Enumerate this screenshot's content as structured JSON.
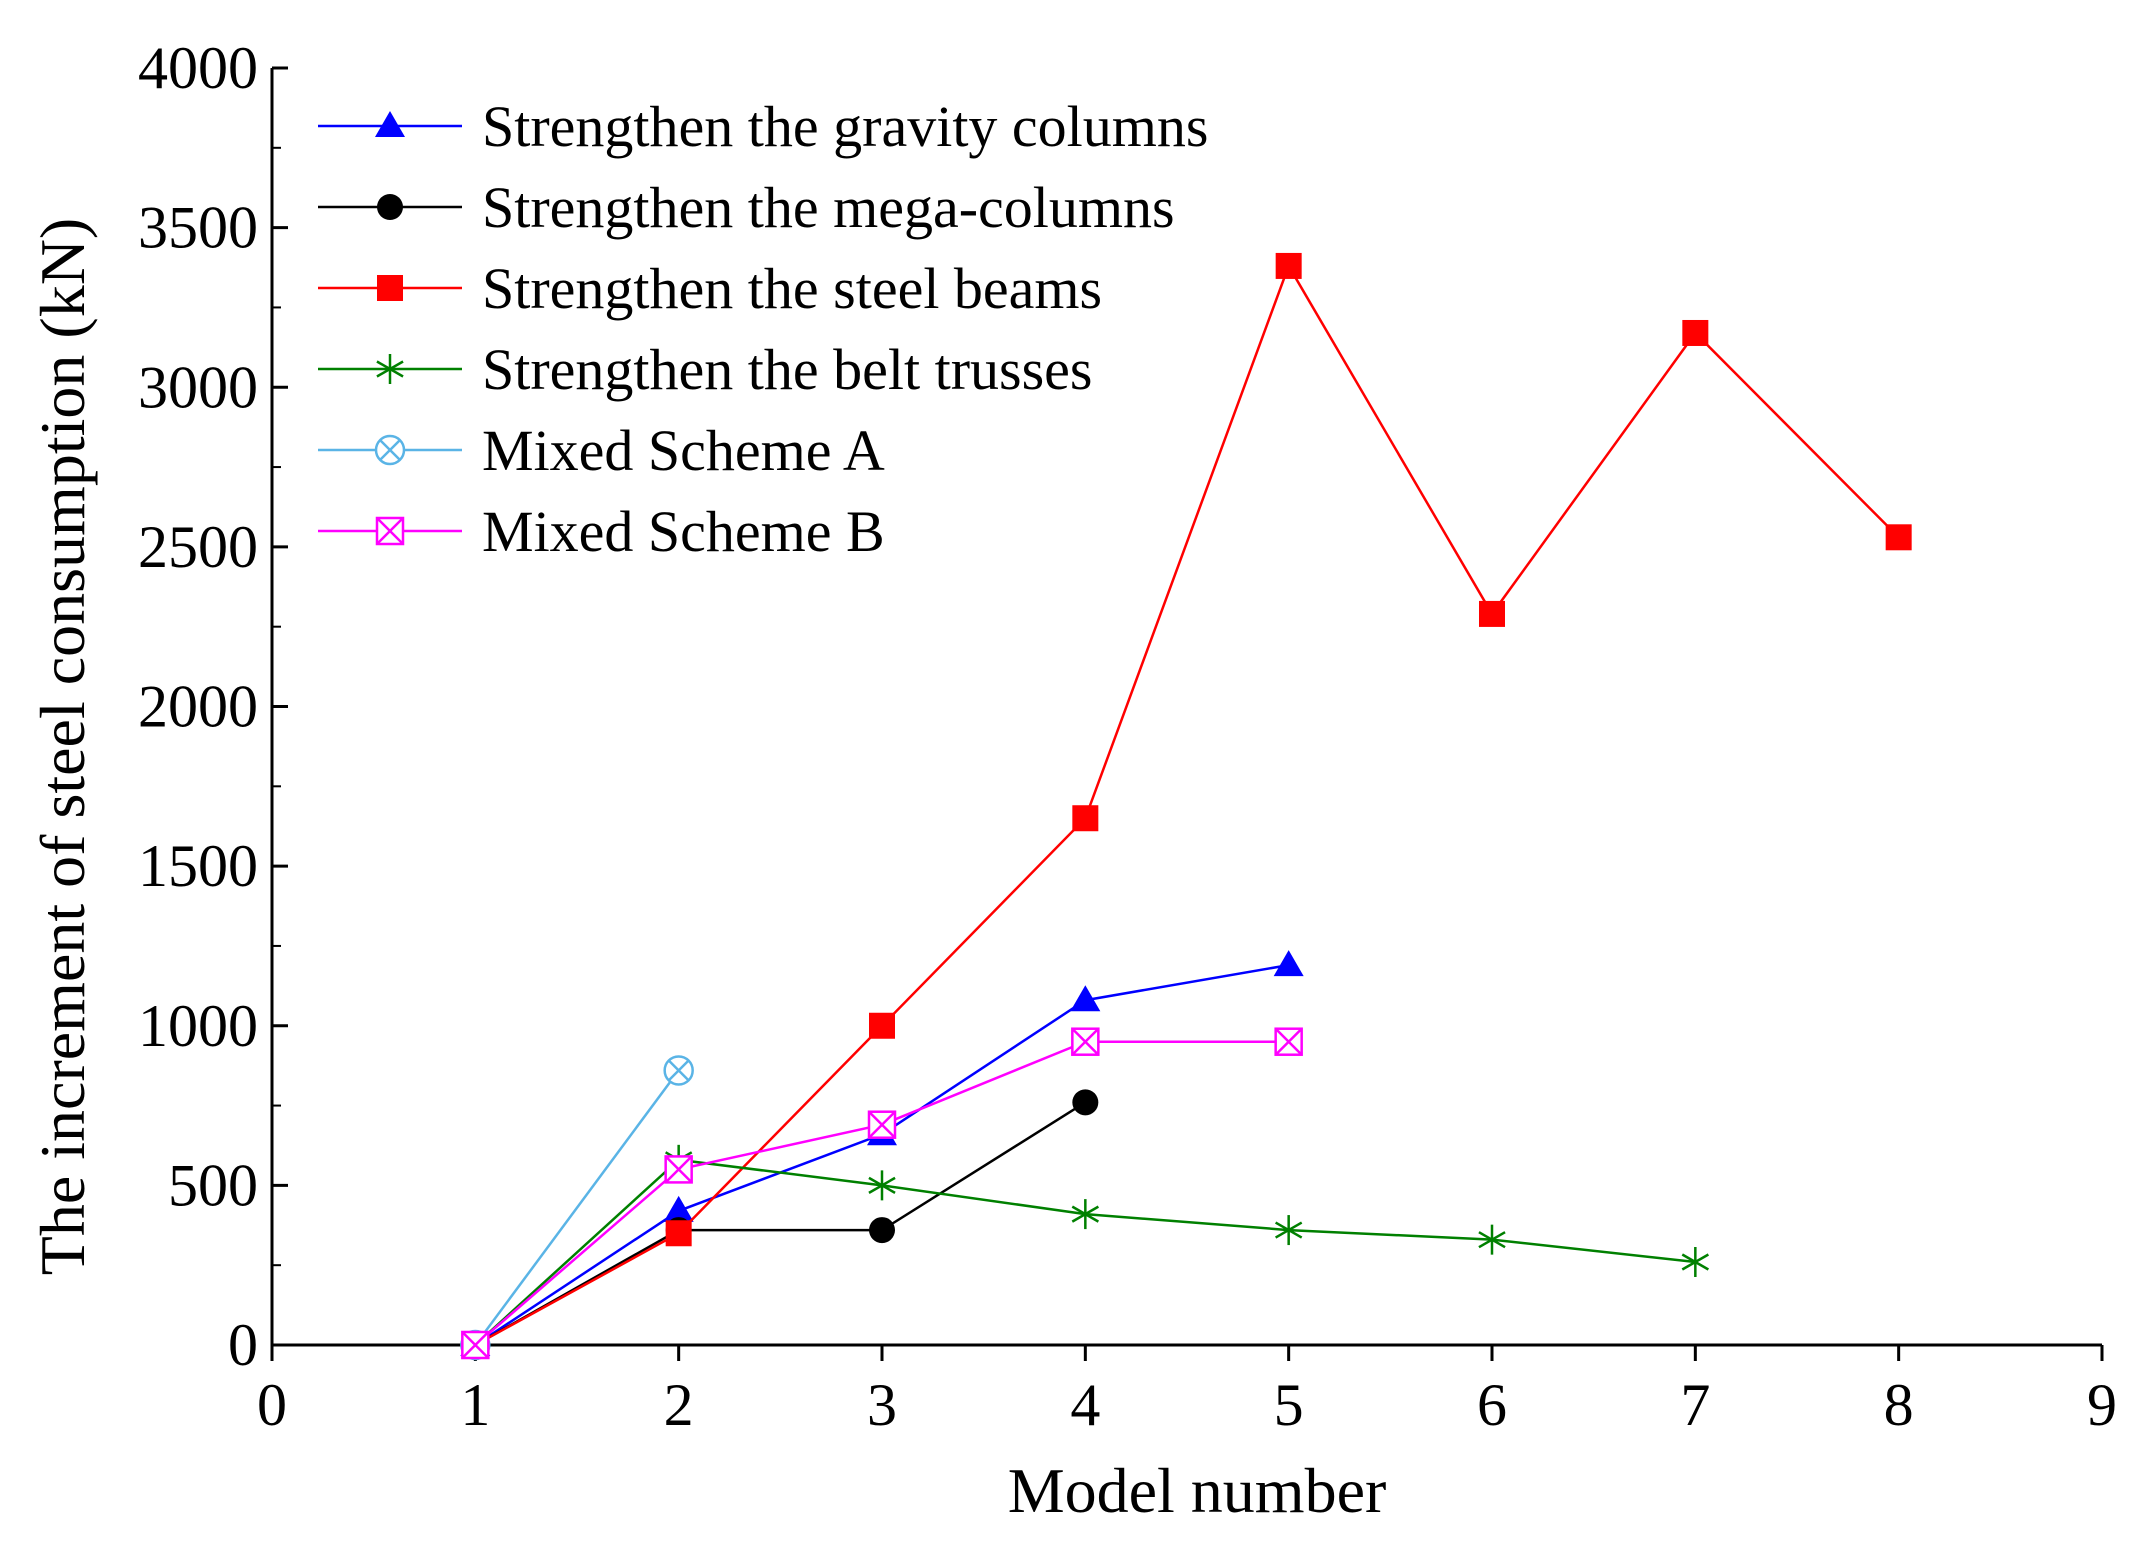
{
  "chart_data": {
    "type": "line",
    "title": "",
    "xlabel": "Model number",
    "ylabel": "The increment of steel consumption (kN)",
    "xlim": [
      0,
      9
    ],
    "ylim": [
      0,
      4000
    ],
    "xticks": [
      0,
      1,
      2,
      3,
      4,
      5,
      6,
      7,
      8,
      9
    ],
    "yticks": [
      0,
      500,
      1000,
      1500,
      2000,
      2500,
      3000,
      3500,
      4000
    ],
    "legend_position": "top-left",
    "grid": false,
    "series": [
      {
        "name": "Strengthen the gravity columns",
        "color": "#0000ff",
        "marker": "triangle",
        "points": [
          [
            1,
            0
          ],
          [
            2,
            420
          ],
          [
            3,
            660
          ],
          [
            4,
            1080
          ],
          [
            5,
            1190
          ]
        ]
      },
      {
        "name": "Strengthen the mega-columns",
        "color": "#000000",
        "marker": "circle",
        "points": [
          [
            1,
            0
          ],
          [
            2,
            360
          ],
          [
            3,
            360
          ],
          [
            4,
            760
          ]
        ]
      },
      {
        "name": "Strengthen the steel beams",
        "color": "#ff0000",
        "marker": "square",
        "points": [
          [
            1,
            0
          ],
          [
            2,
            350
          ],
          [
            3,
            1000
          ],
          [
            4,
            1650
          ],
          [
            5,
            3380
          ],
          [
            6,
            2290
          ],
          [
            7,
            3170
          ],
          [
            8,
            2530
          ]
        ]
      },
      {
        "name": "Strengthen the belt trusses",
        "color": "#008000",
        "marker": "asterisk",
        "points": [
          [
            1,
            0
          ],
          [
            2,
            580
          ],
          [
            3,
            500
          ],
          [
            4,
            410
          ],
          [
            5,
            360
          ],
          [
            6,
            330
          ],
          [
            7,
            260
          ]
        ]
      },
      {
        "name": "Mixed Scheme A",
        "color": "#5ab4e6",
        "marker": "circle-x",
        "points": [
          [
            1,
            0
          ],
          [
            2,
            860
          ]
        ]
      },
      {
        "name": "Mixed Scheme B",
        "color": "#ff00ff",
        "marker": "square-x",
        "points": [
          [
            1,
            0
          ],
          [
            2,
            550
          ],
          [
            3,
            690
          ],
          [
            4,
            950
          ],
          [
            5,
            950
          ]
        ]
      }
    ]
  }
}
